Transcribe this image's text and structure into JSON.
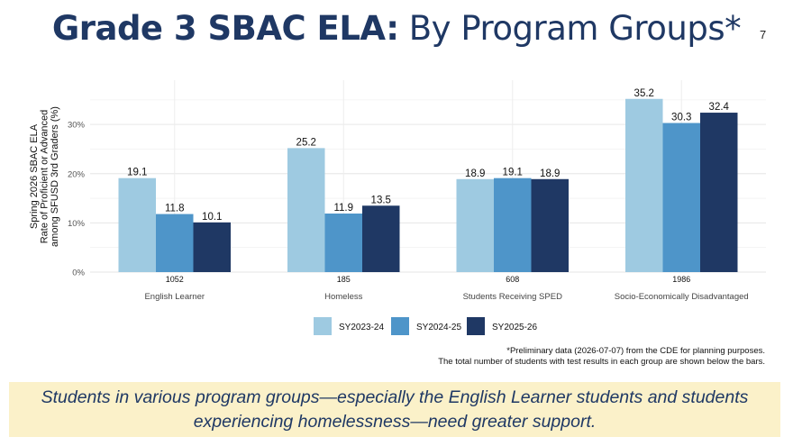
{
  "slide": {
    "title_bold": "Grade 3 SBAC ELA:",
    "title_rest": " By Program Groups*",
    "page_number": "7",
    "footnote_line1": "*Preliminary data (2026-07-07) from the CDE for planning purposes.",
    "footnote_line2": "The total number of students with test results in each group are shown below the bars.",
    "callout_line1": "Students in various program groups—especially the English Learner students and students",
    "callout_line2": "experiencing homelessness—need greater support."
  },
  "chart_data": {
    "type": "bar",
    "ylabel": [
      "Spring 2026 SBAC ELA",
      "Rate of Proficient or Advanced",
      "among SFUSD 3rd Graders (%)"
    ],
    "xlabel": "",
    "ylim": [
      0,
      39
    ],
    "yticks": [
      0,
      10,
      20,
      30
    ],
    "ytick_labels": [
      "0%",
      "10%",
      "20%",
      "30%"
    ],
    "grid": true,
    "legend_position": "bottom",
    "categories": [
      "English Learner",
      "Homeless",
      "Students Receiving SPED",
      "Socio-Economically Disadvantaged"
    ],
    "counts": [
      "1052",
      "185",
      "608",
      "1986"
    ],
    "series": [
      {
        "name": "SY2023-24",
        "color": "#9ecae1",
        "values": [
          19.1,
          25.2,
          18.9,
          35.2
        ]
      },
      {
        "name": "SY2024-25",
        "color": "#4e95c9",
        "values": [
          11.8,
          11.9,
          19.1,
          30.3
        ]
      },
      {
        "name": "SY2025-26",
        "color": "#1f3864",
        "values": [
          10.1,
          13.5,
          18.9,
          32.4
        ]
      }
    ]
  }
}
